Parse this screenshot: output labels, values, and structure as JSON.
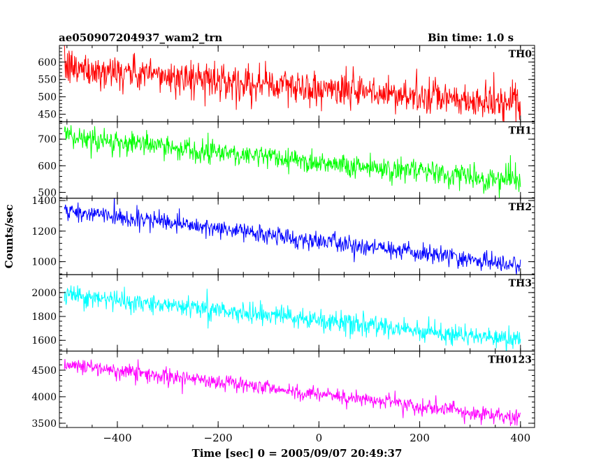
{
  "header": {
    "title": "ae050907204937_wam2_trn",
    "bin_time": "Bin time: 1.0 s"
  },
  "chart_data": {
    "type": "line",
    "xlabel": "Time [sec] 0 = 2005/09/07 20:49:37",
    "ylabel": "Counts/sec",
    "xlim": [
      -515,
      428
    ],
    "x_data_range": [
      -505,
      400
    ],
    "x_ticks": [
      -400,
      -200,
      0,
      200,
      400
    ],
    "panels": [
      {
        "name": "TH0",
        "color": "#ff0000",
        "ylim": [
          428,
          648
        ],
        "ticks": [
          450,
          500,
          550,
          600
        ],
        "start": 585,
        "end": 475,
        "noise": 32
      },
      {
        "name": "TH1",
        "color": "#00ff00",
        "ylim": [
          478,
          765
        ],
        "ticks": [
          500,
          600,
          700
        ],
        "start": 710,
        "end": 540,
        "noise": 28
      },
      {
        "name": "TH2",
        "color": "#0000ff",
        "ylim": [
          915,
          1415
        ],
        "ticks": [
          1000,
          1200,
          1400
        ],
        "start": 1335,
        "end": 975,
        "noise": 38
      },
      {
        "name": "TH3",
        "color": "#00ffff",
        "ylim": [
          1510,
          2150
        ],
        "ticks": [
          1600,
          1800,
          2000
        ],
        "start": 1985,
        "end": 1595,
        "noise": 55
      },
      {
        "name": "TH0123",
        "color": "#ff00ff",
        "ylim": [
          3420,
          4860
        ],
        "ticks": [
          3500,
          4000,
          4500
        ],
        "start": 4620,
        "end": 3600,
        "noise": 95
      }
    ]
  }
}
